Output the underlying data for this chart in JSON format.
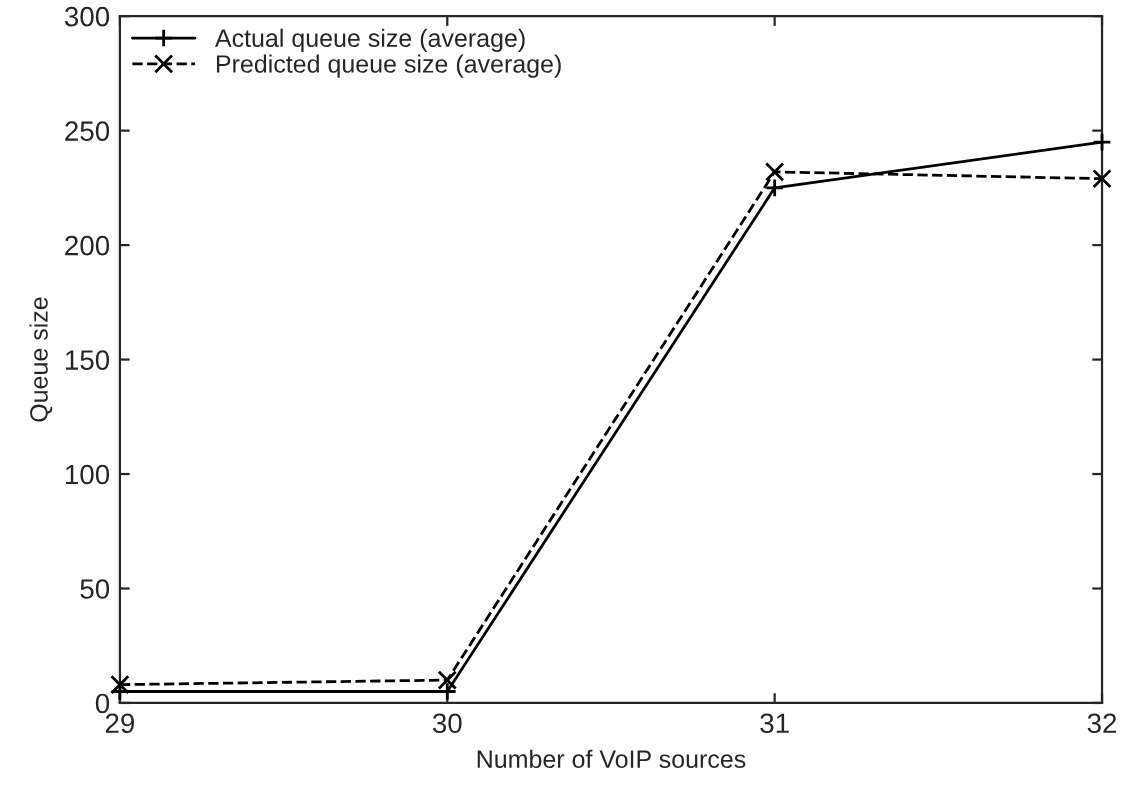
{
  "chart_data": {
    "type": "line",
    "xlabel": "Number of VoIP sources",
    "ylabel": "Queue size",
    "x": [
      29,
      30,
      31,
      32
    ],
    "xlim": [
      29,
      32
    ],
    "xticks": [
      29,
      30,
      31,
      32
    ],
    "ylim": [
      0,
      300
    ],
    "yticks": [
      0,
      50,
      100,
      150,
      200,
      250,
      300
    ],
    "grid": false,
    "legend": "top left",
    "series": [
      {
        "name": "Actual queue size (average)",
        "color": "#000000",
        "values": [
          5,
          5,
          225,
          245
        ],
        "marker": "plus",
        "line_style": "solid"
      },
      {
        "name": "Predicted queue size (average)",
        "color": "#000000",
        "values": [
          8,
          10,
          232,
          229
        ],
        "marker": "cross",
        "line_style": "dashed"
      }
    ]
  }
}
